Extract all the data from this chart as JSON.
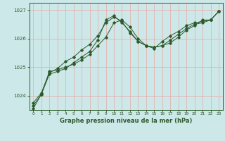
{
  "title": "Graphe pression niveau de la mer (hPa)",
  "bg_color": "#cce8e8",
  "grid_color": "#e8b0b0",
  "line_color": "#2d5a2d",
  "x_ticks": [
    0,
    1,
    2,
    3,
    4,
    5,
    6,
    7,
    8,
    9,
    10,
    11,
    12,
    13,
    14,
    15,
    16,
    17,
    18,
    19,
    20,
    21,
    22,
    23
  ],
  "y_ticks": [
    1024,
    1025,
    1026,
    1027
  ],
  "ylim": [
    1023.5,
    1027.25
  ],
  "xlim": [
    -0.5,
    23.5
  ],
  "series1": [
    1023.65,
    1024.05,
    1024.85,
    1024.9,
    1025.0,
    1025.1,
    1025.25,
    1025.45,
    1025.75,
    1026.05,
    1026.55,
    1026.65,
    1026.4,
    1026.0,
    1025.75,
    1025.7,
    1025.75,
    1025.95,
    1026.15,
    1026.35,
    1026.5,
    1026.55,
    1026.65,
    1026.95
  ],
  "series2": [
    1023.55,
    1024.05,
    1024.75,
    1024.85,
    1024.95,
    1025.15,
    1025.35,
    1025.55,
    1025.95,
    1026.65,
    1026.8,
    1026.55,
    1026.25,
    1025.9,
    1025.75,
    1025.65,
    1025.9,
    1026.1,
    1026.25,
    1026.45,
    1026.55,
    1026.6,
    1026.65,
    1026.95
  ],
  "series3": [
    1023.75,
    1024.1,
    1024.8,
    1024.95,
    1025.2,
    1025.35,
    1025.6,
    1025.8,
    1026.1,
    1026.55,
    1026.75,
    1026.6,
    1026.2,
    1025.9,
    1025.75,
    1025.7,
    1025.75,
    1025.85,
    1026.05,
    1026.3,
    1026.45,
    1026.65,
    1026.65,
    1026.95
  ]
}
